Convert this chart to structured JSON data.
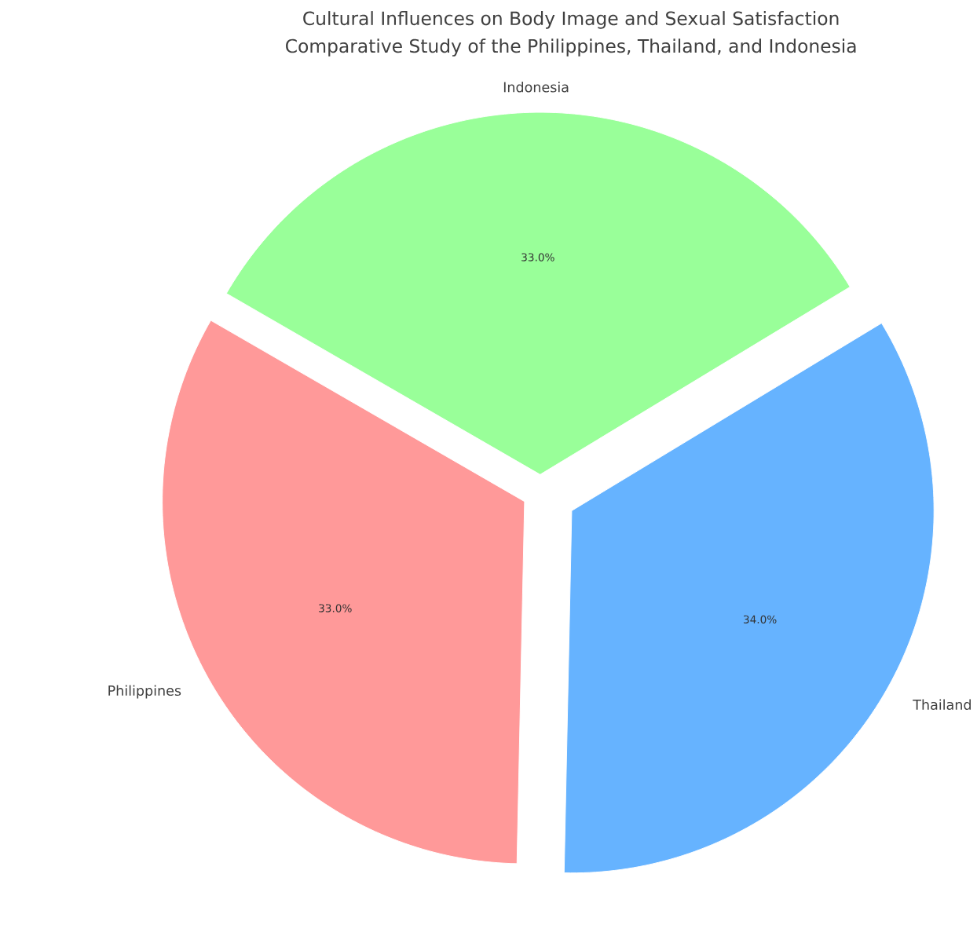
{
  "chart_data": {
    "type": "pie",
    "title": "Cultural Influences on Body Image and Sexual Satisfaction",
    "subtitle": "Comparative Study of the Philippines, Thailand, and Indonesia",
    "categories": [
      "Philippines",
      "Thailand",
      "Indonesia"
    ],
    "values": [
      33,
      34,
      33
    ],
    "colors": [
      "#ff9999",
      "#66b3ff",
      "#99ff99"
    ],
    "value_labels": [
      "33.0%",
      "34.0%",
      "33.0%"
    ],
    "legend": false
  }
}
